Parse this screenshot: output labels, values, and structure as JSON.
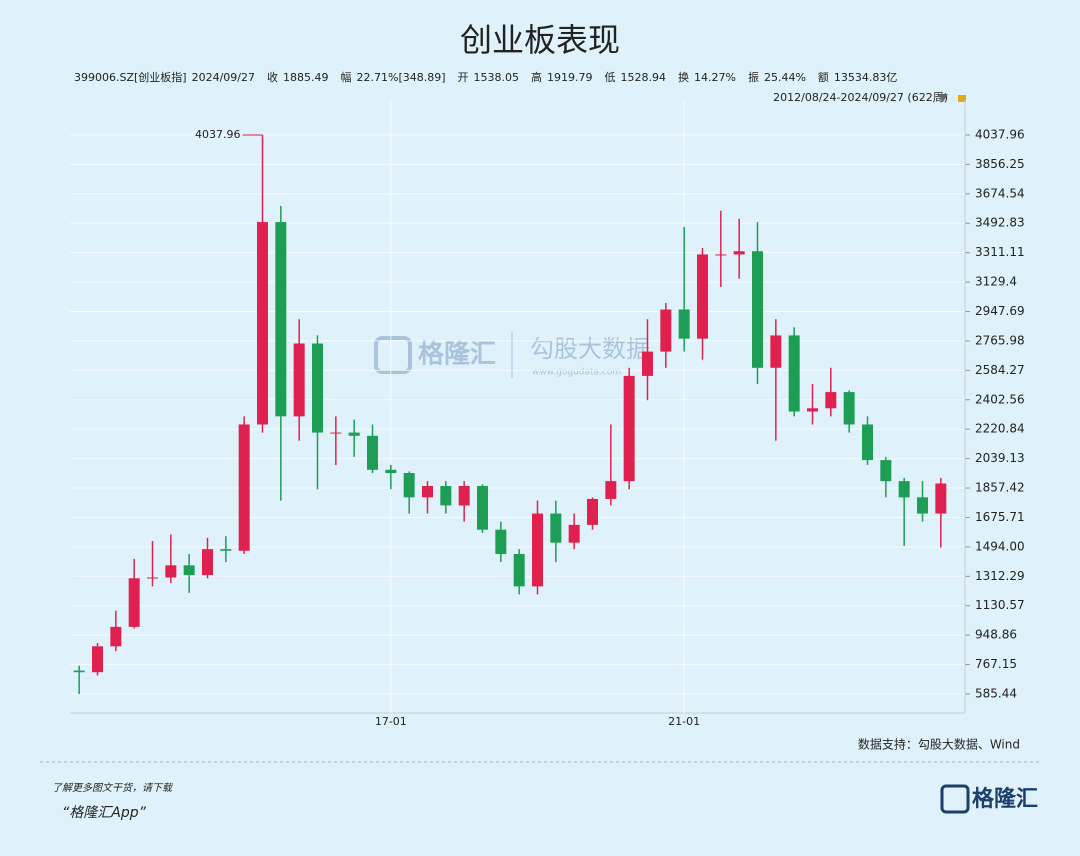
{
  "chart_data": {
    "type": "candlestick",
    "title": "创业板表现",
    "header_fields": [
      {
        "label": "399006.SZ[创业板指]",
        "value": "2024/09/27",
        "color": "#333333"
      },
      {
        "label": "收",
        "value": "1885.49",
        "color": "#e0204f"
      },
      {
        "label": "幅",
        "value": "22.71%[348.89]",
        "color": "#e0204f"
      },
      {
        "label": "开",
        "value": "1538.05",
        "color": "#e0204f"
      },
      {
        "label": "高",
        "value": "1919.79",
        "color": "#e0204f"
      },
      {
        "label": "低",
        "value": "1528.94",
        "color": "#1e9e55"
      },
      {
        "label": "换",
        "value": "14.27%",
        "color": "#333333"
      },
      {
        "label": "振",
        "value": "25.44%",
        "color": "#333333"
      },
      {
        "label": "额",
        "value": "13534.83亿",
        "color": "#333333"
      }
    ],
    "range_label": "2012/08/24-2024/09/27 (622周)",
    "source": "数据支持：勾股大数据、Wind",
    "watermark": [
      "格隆汇",
      "勾股大数据",
      "www.gogudata.com"
    ],
    "footer": {
      "line1": "了解更多图文干货，请下载",
      "line2": "“格隆汇App”",
      "logo": "格隆汇"
    },
    "categories": [
      null,
      null,
      null,
      null,
      null,
      null,
      null,
      null,
      null,
      null,
      null,
      null,
      null,
      null,
      null,
      null,
      null,
      "17-01",
      null,
      null,
      null,
      null,
      null,
      null,
      null,
      null,
      null,
      null,
      null,
      null,
      null,
      null,
      null,
      "21-01",
      null,
      null,
      null,
      null,
      null,
      null,
      null,
      null,
      null,
      null,
      null,
      null,
      null,
      null
    ],
    "open": [
      730,
      720,
      880,
      1000,
      1300,
      1305,
      1380,
      1320,
      1480,
      1470,
      2250,
      3500,
      2300,
      2750,
      2200,
      2200,
      2180,
      1970,
      1950,
      1800,
      1870,
      1750,
      1870,
      1600,
      1450,
      1250,
      1700,
      1520,
      1630,
      1790,
      1900,
      2550,
      2700,
      2960,
      2780,
      3300,
      3300,
      3320,
      2600,
      2800,
      2330,
      2350,
      2450,
      2250,
      2030,
      1900,
      1800,
      1700
    ],
    "high": [
      760,
      900,
      1100,
      1420,
      1530,
      1570,
      1450,
      1550,
      1560,
      2300,
      4037.96,
      3600,
      2900,
      2800,
      2300,
      2280,
      2250,
      2000,
      1960,
      1900,
      1900,
      1900,
      1880,
      1650,
      1480,
      1780,
      1780,
      1700,
      1800,
      2250,
      2600,
      2900,
      3000,
      3470,
      3340,
      3570,
      3520,
      3500,
      2900,
      2850,
      2500,
      2600,
      2460,
      2300,
      2050,
      1920,
      1900,
      1920
    ],
    "low": [
      585,
      700,
      850,
      990,
      1250,
      1270,
      1210,
      1300,
      1400,
      1450,
      2200,
      1780,
      2150,
      1850,
      2000,
      2050,
      1950,
      1850,
      1700,
      1700,
      1700,
      1650,
      1580,
      1400,
      1200,
      1200,
      1400,
      1480,
      1600,
      1750,
      1850,
      2400,
      2600,
      2700,
      2650,
      3100,
      3150,
      2500,
      2150,
      2300,
      2250,
      2300,
      2200,
      2000,
      1800,
      1500,
      1650,
      1490
    ],
    "close": [
      720,
      880,
      1000,
      1300,
      1305,
      1380,
      1320,
      1480,
      1470,
      2250,
      3500,
      2300,
      2750,
      2200,
      2200,
      2180,
      1970,
      1950,
      1800,
      1870,
      1750,
      1870,
      1600,
      1450,
      1250,
      1700,
      1520,
      1630,
      1790,
      1900,
      2550,
      2700,
      2960,
      2780,
      3300,
      3300,
      3320,
      2600,
      2800,
      2330,
      2350,
      2450,
      2250,
      2030,
      1900,
      1800,
      1700,
      1885.49
    ],
    "up_color": "#e0204f",
    "down_color": "#1e9e55",
    "ylim": [
      468,
      4254
    ],
    "yticks": [
      4037.96,
      3856.25,
      3674.54,
      3492.83,
      3311.11,
      3129.4,
      2947.69,
      2765.98,
      2584.27,
      2402.56,
      2220.84,
      2039.13,
      1857.42,
      1675.71,
      {
        "value": 1494,
        "label": "1494.00"
      },
      1312.29,
      1130.57,
      948.86,
      767.15,
      585.44
    ],
    "grid": true,
    "peak_index": 10
  }
}
